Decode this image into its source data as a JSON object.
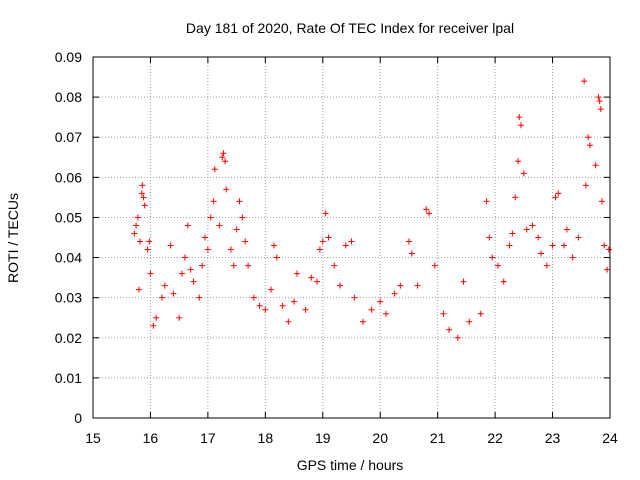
{
  "chart_data": {
    "type": "scatter",
    "title": "Day 181 of 2020, Rate Of TEC Index for receiver lpal",
    "xlabel": "GPS time / hours",
    "ylabel": "ROTI / TECUs",
    "xlim": [
      15,
      24
    ],
    "ylim": [
      0,
      0.09
    ],
    "x_ticks": [
      15,
      16,
      17,
      18,
      19,
      20,
      21,
      22,
      23,
      24
    ],
    "x_tick_labels": [
      "15",
      "16",
      "17",
      "18",
      "19",
      "20",
      "21",
      "22",
      "23",
      "24"
    ],
    "y_ticks": [
      0,
      0.01,
      0.02,
      0.03,
      0.04,
      0.05,
      0.06,
      0.07,
      0.08,
      0.09
    ],
    "y_tick_labels": [
      "0",
      "0.01",
      "0.02",
      "0.03",
      "0.04",
      "0.05",
      "0.06",
      "0.07",
      "0.08",
      "0.09"
    ],
    "grid": true,
    "marker": "+",
    "marker_color": "#ff0000",
    "series": [
      {
        "points": [
          [
            15.72,
            0.046
          ],
          [
            15.75,
            0.048
          ],
          [
            15.78,
            0.05
          ],
          [
            15.8,
            0.032
          ],
          [
            15.82,
            0.044
          ],
          [
            15.85,
            0.056
          ],
          [
            15.86,
            0.058
          ],
          [
            15.88,
            0.055
          ],
          [
            15.9,
            0.053
          ],
          [
            15.95,
            0.042
          ],
          [
            15.98,
            0.044
          ],
          [
            16.0,
            0.036
          ],
          [
            16.05,
            0.023
          ],
          [
            16.1,
            0.025
          ],
          [
            16.2,
            0.03
          ],
          [
            16.25,
            0.033
          ],
          [
            16.35,
            0.043
          ],
          [
            16.4,
            0.031
          ],
          [
            16.5,
            0.025
          ],
          [
            16.55,
            0.036
          ],
          [
            16.6,
            0.04
          ],
          [
            16.65,
            0.048
          ],
          [
            16.7,
            0.037
          ],
          [
            16.75,
            0.034
          ],
          [
            16.85,
            0.03
          ],
          [
            16.9,
            0.038
          ],
          [
            16.95,
            0.045
          ],
          [
            17.0,
            0.042
          ],
          [
            17.05,
            0.05
          ],
          [
            17.1,
            0.054
          ],
          [
            17.12,
            0.062
          ],
          [
            17.2,
            0.048
          ],
          [
            17.25,
            0.065
          ],
          [
            17.27,
            0.066
          ],
          [
            17.3,
            0.064
          ],
          [
            17.32,
            0.057
          ],
          [
            17.4,
            0.042
          ],
          [
            17.45,
            0.038
          ],
          [
            17.5,
            0.047
          ],
          [
            17.55,
            0.054
          ],
          [
            17.6,
            0.05
          ],
          [
            17.65,
            0.044
          ],
          [
            17.7,
            0.038
          ],
          [
            17.8,
            0.03
          ],
          [
            17.9,
            0.028
          ],
          [
            18.0,
            0.027
          ],
          [
            18.1,
            0.032
          ],
          [
            18.15,
            0.043
          ],
          [
            18.2,
            0.04
          ],
          [
            18.3,
            0.028
          ],
          [
            18.4,
            0.024
          ],
          [
            18.5,
            0.029
          ],
          [
            18.55,
            0.036
          ],
          [
            18.7,
            0.027
          ],
          [
            18.8,
            0.035
          ],
          [
            18.9,
            0.034
          ],
          [
            18.95,
            0.042
          ],
          [
            19.0,
            0.044
          ],
          [
            19.05,
            0.051
          ],
          [
            19.1,
            0.045
          ],
          [
            19.2,
            0.038
          ],
          [
            19.3,
            0.033
          ],
          [
            19.4,
            0.043
          ],
          [
            19.5,
            0.044
          ],
          [
            19.55,
            0.03
          ],
          [
            19.7,
            0.024
          ],
          [
            19.85,
            0.027
          ],
          [
            20.0,
            0.029
          ],
          [
            20.1,
            0.026
          ],
          [
            20.25,
            0.031
          ],
          [
            20.35,
            0.033
          ],
          [
            20.5,
            0.044
          ],
          [
            20.55,
            0.041
          ],
          [
            20.65,
            0.033
          ],
          [
            20.8,
            0.052
          ],
          [
            20.85,
            0.051
          ],
          [
            20.95,
            0.038
          ],
          [
            21.1,
            0.026
          ],
          [
            21.2,
            0.022
          ],
          [
            21.35,
            0.02
          ],
          [
            21.45,
            0.034
          ],
          [
            21.55,
            0.024
          ],
          [
            21.75,
            0.026
          ],
          [
            21.85,
            0.054
          ],
          [
            21.9,
            0.045
          ],
          [
            21.95,
            0.04
          ],
          [
            22.05,
            0.038
          ],
          [
            22.15,
            0.034
          ],
          [
            22.25,
            0.043
          ],
          [
            22.3,
            0.046
          ],
          [
            22.35,
            0.055
          ],
          [
            22.4,
            0.064
          ],
          [
            22.42,
            0.075
          ],
          [
            22.45,
            0.073
          ],
          [
            22.5,
            0.061
          ],
          [
            22.55,
            0.047
          ],
          [
            22.65,
            0.048
          ],
          [
            22.75,
            0.045
          ],
          [
            22.8,
            0.041
          ],
          [
            22.9,
            0.038
          ],
          [
            23.0,
            0.043
          ],
          [
            23.05,
            0.055
          ],
          [
            23.1,
            0.056
          ],
          [
            23.2,
            0.043
          ],
          [
            23.25,
            0.047
          ],
          [
            23.35,
            0.04
          ],
          [
            23.45,
            0.045
          ],
          [
            23.55,
            0.084
          ],
          [
            23.58,
            0.058
          ],
          [
            23.62,
            0.07
          ],
          [
            23.65,
            0.068
          ],
          [
            23.75,
            0.063
          ],
          [
            23.8,
            0.08
          ],
          [
            23.82,
            0.079
          ],
          [
            23.84,
            0.077
          ],
          [
            23.86,
            0.054
          ],
          [
            23.9,
            0.043
          ],
          [
            23.95,
            0.037
          ],
          [
            23.98,
            0.042
          ]
        ]
      }
    ]
  }
}
